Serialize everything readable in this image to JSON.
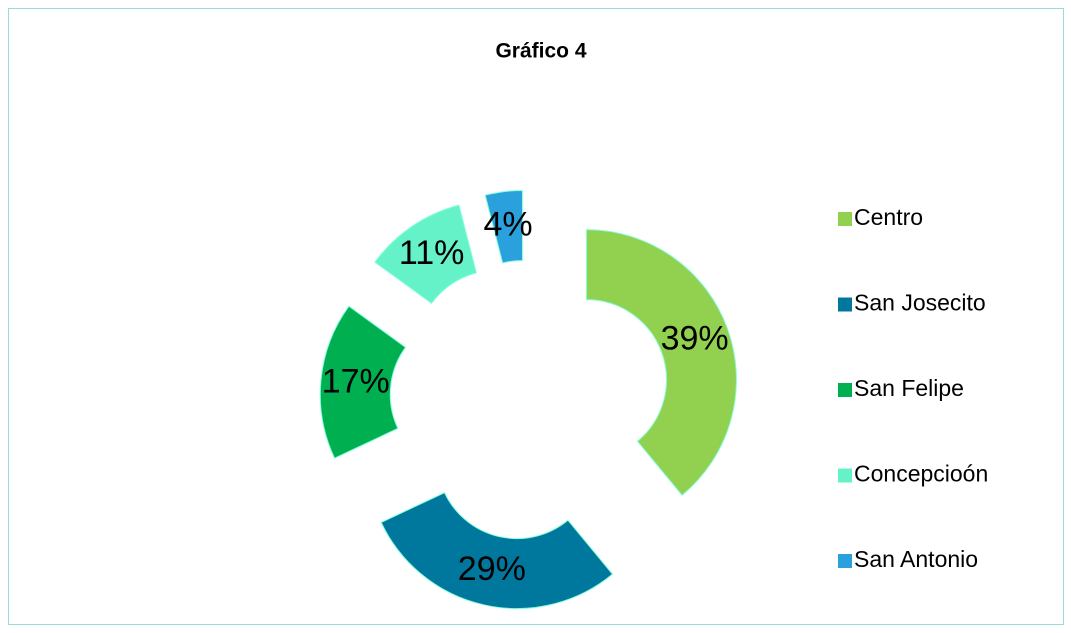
{
  "chart_data": {
    "type": "pie",
    "title": "Gráfico 4",
    "donut": true,
    "exploded": true,
    "categories": [
      "Centro",
      "San Josecito",
      "San Felipe",
      "Concepcioón",
      "San Antonio"
    ],
    "values": [
      39,
      29,
      17,
      11,
      4
    ],
    "value_labels": [
      "39%",
      "29%",
      "17%",
      "11%",
      "4%"
    ],
    "colors": [
      "#92d050",
      "#00789e",
      "#00b050",
      "#66f2c8",
      "#2aa0dc"
    ],
    "legend": "right"
  }
}
